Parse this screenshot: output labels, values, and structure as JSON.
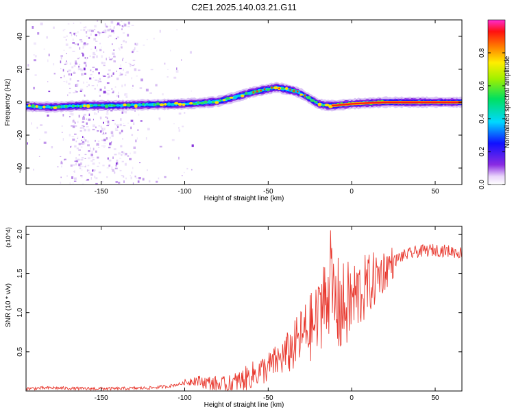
{
  "title": "C2E1.2025.140.03.21.G11",
  "chart_data": [
    {
      "type": "heatmap",
      "xlabel": "Height of straight line (km)",
      "ylabel": "Frequency (Hz)",
      "xlim": [
        -195,
        66
      ],
      "ylim": [
        -50,
        50
      ],
      "xticks": [
        -150,
        -100,
        -50,
        0,
        50
      ],
      "xtick_labels": [
        "-150",
        "-100",
        "-50",
        "0",
        "50"
      ],
      "yticks": [
        -40,
        -20,
        0,
        20,
        40
      ],
      "ytick_labels": [
        "-40",
        "-20",
        "0",
        "20",
        "40"
      ],
      "colorbar": {
        "label": "Normalized spectral amplitude",
        "range": [
          0,
          1
        ],
        "ticks": [
          0.0,
          0.2,
          0.4,
          0.6,
          0.8
        ],
        "tick_labels": [
          "0.0",
          "0.2",
          "0.4",
          "0.6",
          "0.8"
        ],
        "colormap": "rainbow (white-violet-blue-cyan-green-yellow-red-magenta)"
      },
      "ridge": {
        "x": [
          -195,
          -180,
          -160,
          -140,
          -120,
          -100,
          -90,
          -80,
          -70,
          -60,
          -50,
          -45,
          -40,
          -35,
          -30,
          -25,
          -20,
          -15,
          -10,
          0,
          20,
          40,
          66
        ],
        "y": [
          -2.5,
          -3,
          -2,
          -2,
          -1.5,
          -1,
          -0.5,
          0.5,
          3,
          6,
          8,
          9,
          8,
          7,
          5,
          2,
          -1,
          -2,
          -2,
          -1,
          0,
          0,
          0
        ]
      },
      "scatter_noise_region_km": [
        -175,
        -125
      ]
    },
    {
      "type": "line",
      "xlabel": "Height of straight line (km)",
      "ylabel": "SNR (10 * v/v)",
      "y_multiplier": "(x10^4)",
      "xlim": [
        -195,
        66
      ],
      "ylim": [
        0,
        2.1
      ],
      "xticks": [
        -150,
        -100,
        -50,
        0,
        50
      ],
      "xtick_labels": [
        "-150",
        "-100",
        "-50",
        "0",
        "50"
      ],
      "yticks": [
        0.5,
        1.0,
        1.5,
        2.0
      ],
      "ytick_labels": [
        "0.5",
        "1.0",
        "1.5",
        "2.0"
      ],
      "series": [
        {
          "color": "#e8382e",
          "x": [
            -195,
            -180,
            -160,
            -140,
            -120,
            -110,
            -100,
            -95,
            -90,
            -85,
            -80,
            -75,
            -70,
            -65,
            -60,
            -55,
            -50,
            -45,
            -40,
            -35,
            -30,
            -25,
            -20,
            -17,
            -15,
            -13,
            -10,
            -5,
            0,
            5,
            10,
            15,
            20,
            25,
            30,
            40,
            50,
            60,
            66
          ],
          "y": [
            0.03,
            0.04,
            0.03,
            0.03,
            0.04,
            0.06,
            0.1,
            0.14,
            0.12,
            0.1,
            0.08,
            0.06,
            0.1,
            0.14,
            0.2,
            0.25,
            0.3,
            0.38,
            0.45,
            0.55,
            0.7,
            0.8,
            0.9,
            1.15,
            1.1,
            1.3,
            1.1,
            1.05,
            1.15,
            1.25,
            1.35,
            1.45,
            1.55,
            1.65,
            1.72,
            1.78,
            1.8,
            1.78,
            1.76
          ]
        }
      ]
    }
  ]
}
